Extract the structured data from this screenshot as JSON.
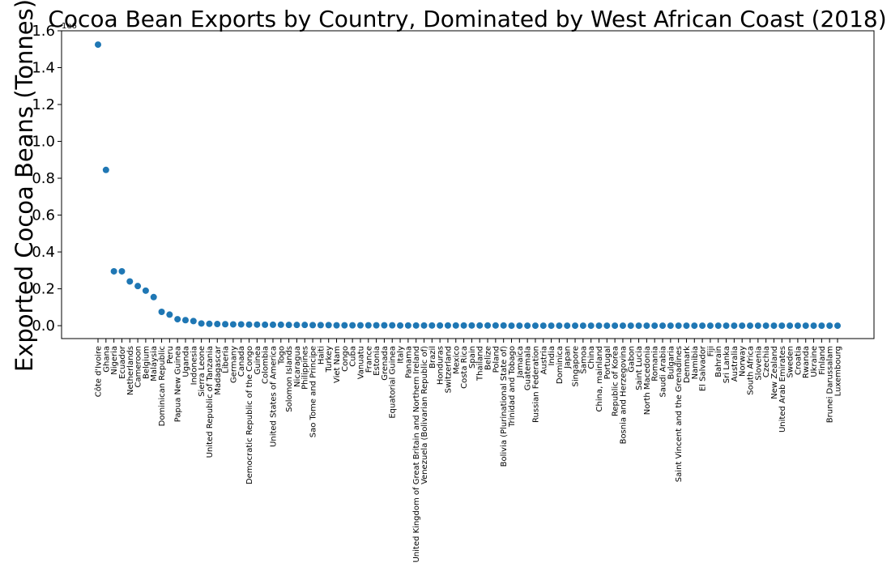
{
  "chart_data": {
    "type": "scatter",
    "title": "Cocoa Bean Exports by Country, Dominated by West African Coast (2018)",
    "ylabel": "Exported Cocoa Beans (Tonnes)",
    "xlabel": "",
    "y_offset_label": "1e6",
    "y_scale": 1000000,
    "ylim": [
      -0.07,
      1.6
    ],
    "yticks": [
      0.0,
      0.2,
      0.4,
      0.6,
      0.8,
      1.0,
      1.2,
      1.4,
      1.6
    ],
    "ytick_labels": [
      "0.0",
      "0.2",
      "0.4",
      "0.6",
      "0.8",
      "1.0",
      "1.2",
      "1.4",
      "1.6"
    ],
    "grid": false,
    "marker_color": "#1f77b4",
    "categories": [
      "Côte d'Ivoire",
      "Ghana",
      "Nigeria",
      "Ecuador",
      "Netherlands",
      "Cameroon",
      "Belgium",
      "Malaysia",
      "Dominican Republic",
      "Peru",
      "Papua New Guinea",
      "Uganda",
      "Indonesia",
      "Sierra Leone",
      "United Republic of Tanzania",
      "Madagascar",
      "Liberia",
      "Germany",
      "Canada",
      "Democratic Republic of the Congo",
      "Guinea",
      "Colombia",
      "United States of America",
      "Togo",
      "Solomon Islands",
      "Nicaragua",
      "Philippines",
      "Sao Tome and Principe",
      "Haiti",
      "Turkey",
      "Viet Nam",
      "Congo",
      "Cuba",
      "Vanuatu",
      "France",
      "Estonia",
      "Grenada",
      "Equatorial Guinea",
      "Italy",
      "Panama",
      "United Kingdom of Great Britain and Northern Ireland",
      "Venezuela (Bolivarian Republic of)",
      "Brazil",
      "Honduras",
      "Switzerland",
      "Mexico",
      "Costa Rica",
      "Spain",
      "Thailand",
      "Belize",
      "Poland",
      "Bolivia (Plurinational State of)",
      "Trinidad and Tobago",
      "Jamaica",
      "Guatemala",
      "Russian Federation",
      "Austria",
      "India",
      "Dominica",
      "Japan",
      "Singapore",
      "Samoa",
      "China",
      "China, mainland",
      "Portugal",
      "Republic of Korea",
      "Bosnia and Herzegovina",
      "Gabon",
      "Saint Lucia",
      "North Macedonia",
      "Romania",
      "Saudi Arabia",
      "Bulgaria",
      "Saint Vincent and the Grenadines",
      "Denmark",
      "Namibia",
      "El Salvador",
      "Fiji",
      "Bahrain",
      "Sri Lanka",
      "Australia",
      "Norway",
      "South Africa",
      "Slovenia",
      "Czechia",
      "New Zealand",
      "United Arab Emirates",
      "Sweden",
      "Croatia",
      "Rwanda",
      "Ukraine",
      "Finland",
      "Brunei Darussalam",
      "Luxembourg"
    ],
    "values": [
      1.525,
      0.845,
      0.295,
      0.295,
      0.24,
      0.215,
      0.19,
      0.155,
      0.075,
      0.06,
      0.035,
      0.03,
      0.025,
      0.012,
      0.01,
      0.009,
      0.008,
      0.007,
      0.007,
      0.006,
      0.006,
      0.005,
      0.005,
      0.005,
      0.004,
      0.004,
      0.004,
      0.003,
      0.003,
      0.003,
      0.002,
      0.002,
      0.002,
      0.002,
      0.002,
      0.002,
      0.002,
      0.002,
      0.001,
      0.001,
      0.001,
      0.001,
      0.001,
      0.001,
      0.001,
      0.001,
      0.001,
      0.001,
      0.001,
      0.001,
      0.001,
      0.001,
      0.0,
      0.0,
      0.0,
      0.0,
      0.0,
      0.0,
      0.0,
      0.0,
      0.0,
      0.0,
      0.0,
      0.0,
      0.0,
      0.0,
      0.0,
      0.0,
      0.0,
      0.0,
      0.0,
      0.0,
      0.0,
      0.0,
      0.0,
      0.0,
      0.0,
      0.0,
      0.0,
      0.0,
      0.0,
      0.0,
      0.0,
      0.0,
      0.0,
      0.0,
      0.0,
      0.0,
      0.0,
      0.0,
      0.0,
      0.0,
      0.0,
      0.0
    ]
  }
}
